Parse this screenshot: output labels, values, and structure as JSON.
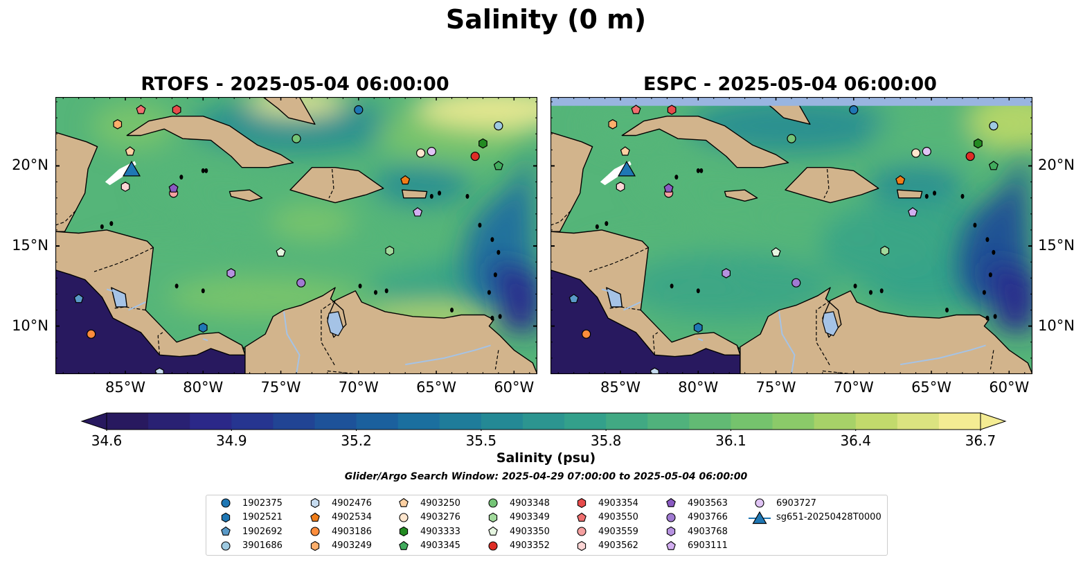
{
  "suptitle": "Salinity (0 m)",
  "panels": [
    {
      "id": "rtofs",
      "title": "RTOFS - 2025-05-04 06:00:00"
    },
    {
      "id": "espc",
      "title": "ESPC - 2025-05-04 06:00:00"
    }
  ],
  "axes": {
    "lon_range": [
      -89.5,
      -58.5
    ],
    "lat_range": [
      7.0,
      24.3
    ],
    "lon_ticks": [
      "85°W",
      "80°W",
      "75°W",
      "70°W",
      "65°W",
      "60°W"
    ],
    "lon_tick_values": [
      -85,
      -80,
      -75,
      -70,
      -65,
      -60
    ],
    "lat_ticks": [
      "20°N",
      "15°N",
      "10°N"
    ],
    "lat_tick_values": [
      20,
      15,
      10
    ]
  },
  "colorbar": {
    "label": "Salinity (psu)",
    "ticks": [
      "34.6",
      "34.9",
      "35.2",
      "35.5",
      "35.8",
      "36.1",
      "36.4",
      "36.7"
    ],
    "tick_values": [
      34.6,
      34.9,
      35.2,
      35.5,
      35.8,
      36.1,
      36.4,
      36.7
    ],
    "range": [
      34.6,
      36.7
    ],
    "colormap": [
      "#28195f",
      "#2b2a8c",
      "#1e4a96",
      "#1a6aa0",
      "#238896",
      "#34a18a",
      "#55b579",
      "#7fc769",
      "#bcd868",
      "#f4ec93"
    ],
    "extend": "both"
  },
  "search_window": "Glider/Argo Search Window: 2025-04-29 07:00:00 to 2025-05-04 06:00:00",
  "colors": {
    "land": "#d2b48c",
    "pacific": "#28195f",
    "lake": "#a5c3e6",
    "espc_nodata_strip": "#99b5e0"
  },
  "floats": [
    {
      "id": "1902375",
      "marker": "circle",
      "color": "#1f77b4",
      "lon": -70.0,
      "lat": 23.5
    },
    {
      "id": "1902521",
      "marker": "hexagon",
      "color": "#1f77b4",
      "lon": -80.0,
      "lat": 9.9
    },
    {
      "id": "1902692",
      "marker": "pentagon",
      "color": "#5a9ac8",
      "lon": -88.0,
      "lat": 11.7
    },
    {
      "id": "3901686",
      "marker": "circle",
      "color": "#9ecae1",
      "lon": -61.0,
      "lat": 22.5
    },
    {
      "id": "4902476",
      "marker": "hexagon",
      "color": "#c6dbef",
      "lon": -82.8,
      "lat": 7.1
    },
    {
      "id": "4902534",
      "marker": "pentagon",
      "color": "#f07d19",
      "lon": -67.0,
      "lat": 19.1
    },
    {
      "id": "4903186",
      "marker": "circle",
      "color": "#fd8d3c",
      "lon": -87.2,
      "lat": 9.5
    },
    {
      "id": "4903249",
      "marker": "hexagon",
      "color": "#fdae6b",
      "lon": -85.5,
      "lat": 22.6
    },
    {
      "id": "4903250",
      "marker": "pentagon",
      "color": "#fdd0a2",
      "lon": -84.7,
      "lat": 20.9
    },
    {
      "id": "4903276",
      "marker": "circle",
      "color": "#fee6ce",
      "lon": -66.0,
      "lat": 20.8
    },
    {
      "id": "4903333",
      "marker": "hexagon",
      "color": "#238b22",
      "lon": -62.0,
      "lat": 21.4
    },
    {
      "id": "4903345",
      "marker": "pentagon",
      "color": "#41ab5d",
      "lon": -61.0,
      "lat": 20.0
    },
    {
      "id": "4903348",
      "marker": "circle",
      "color": "#74c476",
      "lon": -74.0,
      "lat": 21.7
    },
    {
      "id": "4903349",
      "marker": "hexagon",
      "color": "#a1d99b",
      "lon": -68.0,
      "lat": 14.7
    },
    {
      "id": "4903350",
      "marker": "pentagon",
      "color": "#e5f5e0",
      "lon": -75.0,
      "lat": 14.6
    },
    {
      "id": "4903352",
      "marker": "circle",
      "color": "#de2d26",
      "lon": -62.5,
      "lat": 20.6
    },
    {
      "id": "4903354",
      "marker": "hexagon",
      "color": "#e74c4c",
      "lon": -81.7,
      "lat": 23.5
    },
    {
      "id": "4903550",
      "marker": "pentagon",
      "color": "#f07070",
      "lon": -84.0,
      "lat": 23.5
    },
    {
      "id": "4903559",
      "marker": "circle",
      "color": "#f5a0a0",
      "lon": -81.9,
      "lat": 18.3
    },
    {
      "id": "4903562",
      "marker": "hexagon",
      "color": "#fcd5d5",
      "lon": -85.0,
      "lat": 18.7
    },
    {
      "id": "4903563",
      "marker": "pentagon",
      "color": "#8a5ac2",
      "lon": -81.9,
      "lat": 18.6
    },
    {
      "id": "4903766",
      "marker": "circle",
      "color": "#a07ad2",
      "lon": -73.7,
      "lat": 12.7
    },
    {
      "id": "4903768",
      "marker": "hexagon",
      "color": "#b692e0",
      "lon": -78.2,
      "lat": 13.3
    },
    {
      "id": "6903111",
      "marker": "pentagon",
      "color": "#d2aef0",
      "lon": -66.2,
      "lat": 17.1
    },
    {
      "id": "6903727",
      "marker": "circle",
      "color": "#e0c4f4",
      "lon": -65.3,
      "lat": 20.9
    }
  ],
  "glider": {
    "id": "sg651-20250428T0000",
    "marker": "triangle",
    "color": "#1f77b4",
    "lon": -84.6,
    "lat": 19.8
  }
}
